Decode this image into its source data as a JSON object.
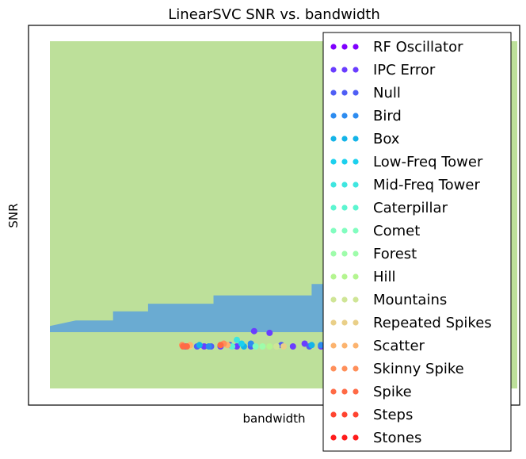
{
  "chart_data": {
    "type": "scatter",
    "title": "LinearSVC SNR vs. bandwidth",
    "xlabel": "bandwidth",
    "ylabel": "SNR",
    "ticks_visible": false,
    "grid": false,
    "legend_placement": "right, overlapping plot",
    "x_range": [
      0,
      1
    ],
    "y_range": [
      0,
      1
    ],
    "decision_regions": [
      {
        "color": "#bde09a",
        "polygon": [
          [
            0.0,
            0.0
          ],
          [
            1.0,
            0.0
          ],
          [
            1.0,
            1.0
          ],
          [
            0.0,
            1.0
          ]
        ]
      },
      {
        "color": "#6aabd2",
        "polygon": [
          [
            0.0,
            0.162
          ],
          [
            0.0,
            0.18
          ],
          [
            0.055,
            0.196
          ],
          [
            0.135,
            0.196
          ],
          [
            0.135,
            0.222
          ],
          [
            0.21,
            0.222
          ],
          [
            0.21,
            0.244
          ],
          [
            0.35,
            0.244
          ],
          [
            0.35,
            0.268
          ],
          [
            0.56,
            0.268
          ],
          [
            0.56,
            0.301
          ],
          [
            0.79,
            0.301
          ],
          [
            0.79,
            0.162
          ]
        ]
      },
      {
        "color": "#e85c54",
        "polygon": [
          [
            0.65,
            0.31
          ],
          [
            0.79,
            0.358
          ],
          [
            0.79,
            0.31
          ]
        ]
      },
      {
        "color": "#a5b87a",
        "polygon": [
          [
            0.63,
            0.312
          ],
          [
            0.65,
            0.318
          ],
          [
            0.79,
            0.37
          ],
          [
            0.79,
            0.355
          ],
          [
            0.66,
            0.31
          ]
        ]
      }
    ],
    "series": [
      {
        "name": "RF Oscillator",
        "color": "#8000ff",
        "points": []
      },
      {
        "name": "IPC Error",
        "color": "#6a3dff",
        "points": [
          [
            0.33,
            0.121
          ],
          [
            0.365,
            0.121
          ],
          [
            0.4,
            0.121
          ],
          [
            0.437,
            0.165
          ],
          [
            0.47,
            0.16
          ],
          [
            0.52,
            0.121
          ],
          [
            0.545,
            0.129
          ],
          [
            0.58,
            0.121
          ],
          [
            0.6,
            0.121
          ],
          [
            0.645,
            0.125
          ],
          [
            0.7,
            0.166
          ],
          [
            0.73,
            0.129
          ],
          [
            0.76,
            0.125
          ]
        ]
      },
      {
        "name": "Null",
        "color": "#4f5ef5",
        "points": [
          [
            0.29,
            0.121
          ],
          [
            0.315,
            0.121
          ],
          [
            0.345,
            0.121
          ],
          [
            0.385,
            0.125
          ],
          [
            0.43,
            0.121
          ],
          [
            0.495,
            0.125
          ],
          [
            0.555,
            0.121
          ],
          [
            0.665,
            0.121
          ],
          [
            0.69,
            0.121
          ]
        ]
      },
      {
        "name": "Bird",
        "color": "#2d8cf0",
        "points": [
          [
            0.665,
            0.42
          ],
          [
            0.34,
            0.121
          ],
          [
            0.43,
            0.129
          ],
          [
            0.58,
            0.125
          ],
          [
            0.74,
            0.121
          ]
        ]
      },
      {
        "name": "Box",
        "color": "#14b4e8",
        "points": [
          [
            0.32,
            0.125
          ],
          [
            0.415,
            0.121
          ],
          [
            0.56,
            0.125
          ]
        ]
      },
      {
        "name": "Low-Freq Tower",
        "color": "#1cd0ee",
        "points": [
          [
            0.41,
            0.129
          ],
          [
            0.65,
            0.121
          ]
        ]
      },
      {
        "name": "Mid-Freq Tower",
        "color": "#3fe6e0",
        "points": [
          [
            0.4,
            0.14
          ],
          [
            0.66,
            0.136
          ],
          [
            0.72,
            0.125
          ]
        ]
      },
      {
        "name": "Caterpillar",
        "color": "#5cf5d0",
        "points": [
          [
            0.39,
            0.121
          ],
          [
            0.6,
            0.121
          ]
        ]
      },
      {
        "name": "Comet",
        "color": "#82fdbf",
        "points": [
          [
            0.44,
            0.121
          ],
          [
            0.68,
            0.125
          ]
        ]
      },
      {
        "name": "Forest",
        "color": "#9efcaa",
        "points": [
          [
            0.455,
            0.121
          ],
          [
            0.705,
            0.121
          ]
        ]
      },
      {
        "name": "Hill",
        "color": "#b4f590",
        "points": [
          [
            0.47,
            0.121
          ]
        ]
      },
      {
        "name": "Mountains",
        "color": "#cfe596",
        "points": [
          [
            0.485,
            0.121
          ]
        ]
      },
      {
        "name": "Repeated Spikes",
        "color": "#e9cf88",
        "points": [
          [
            0.3,
            0.121
          ],
          [
            0.5,
            0.121
          ]
        ]
      },
      {
        "name": "Scatter",
        "color": "#fcb36e",
        "points": [
          [
            0.3,
            0.125
          ],
          [
            0.38,
            0.125
          ]
        ]
      },
      {
        "name": "Skinny Spike",
        "color": "#ff8f5a",
        "points": [
          [
            0.283,
            0.125
          ],
          [
            0.372,
            0.129
          ],
          [
            0.605,
            0.129
          ],
          [
            0.735,
            0.125
          ],
          [
            0.737,
            0.292
          ]
        ]
      },
      {
        "name": "Spike",
        "color": "#ff6a45",
        "points": [
          [
            0.285,
            0.121
          ],
          [
            0.293,
            0.121
          ],
          [
            0.365,
            0.125
          ],
          [
            0.615,
            0.125
          ],
          [
            0.73,
            0.121
          ]
        ]
      },
      {
        "name": "Steps",
        "color": "#ff4430",
        "points": []
      },
      {
        "name": "Stones",
        "color": "#ff1b1b",
        "points": []
      }
    ]
  }
}
